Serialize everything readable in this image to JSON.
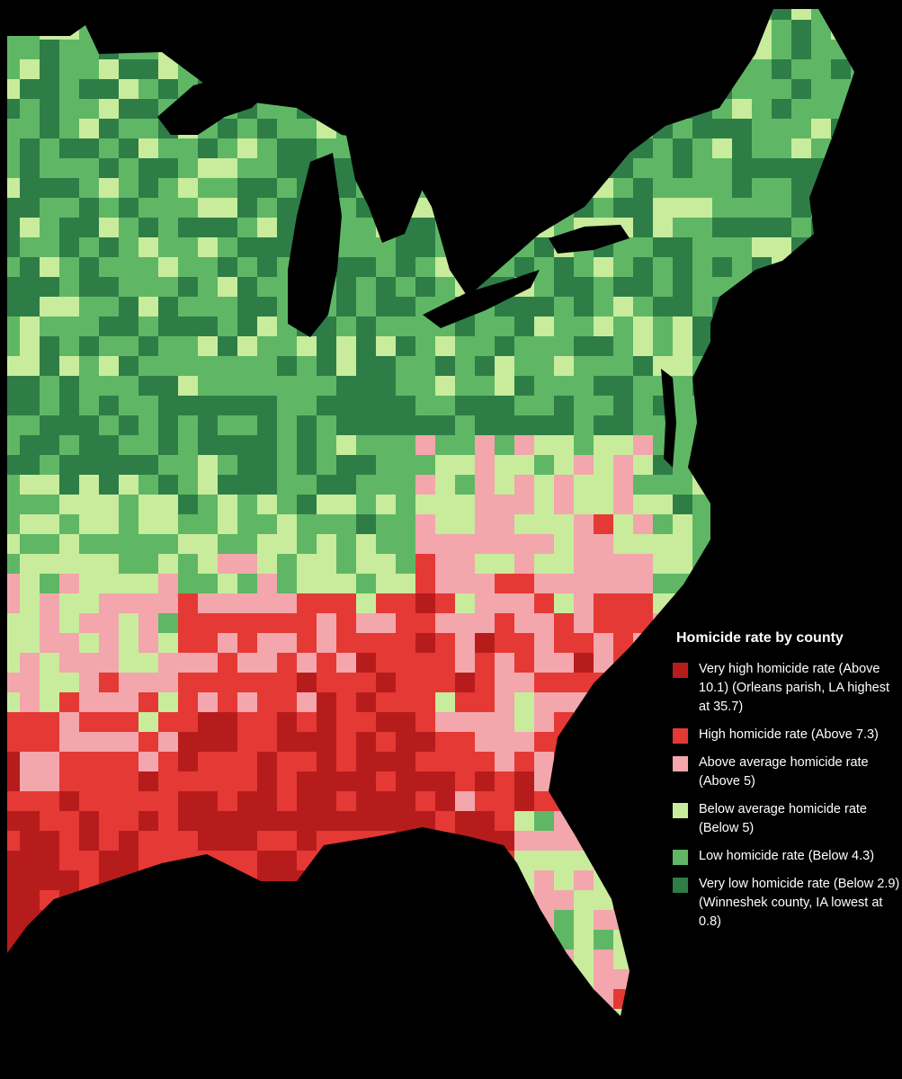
{
  "legend": {
    "title": "Homicide rate by county",
    "items": [
      {
        "color": "#b71c1c",
        "label": "Very high homicide rate (Above 10.1) (Orleans parish, LA highest at 35.7)"
      },
      {
        "color": "#e53935",
        "label": "High homicide rate (Above 7.3)"
      },
      {
        "color": "#f3a6ac",
        "label": "Above average homicide rate (Above 5)"
      },
      {
        "color": "#c8ec9c",
        "label": "Below average homicide rate (Below 5)"
      },
      {
        "color": "#5fb765",
        "label": "Low homicide rate (Below 4.3)"
      },
      {
        "color": "#2e7d47",
        "label": "Very low homicide rate (Below 2.9) (Winneshek county, IA lowest at 0.8)"
      }
    ]
  },
  "colors": {
    "background": "#000000",
    "water": "#000000",
    "very_high": "#b71c1c",
    "high": "#e53935",
    "above_average": "#f3a6ac",
    "below_average": "#c8ec9c",
    "low": "#5fb765",
    "very_low": "#2e7d47"
  }
}
